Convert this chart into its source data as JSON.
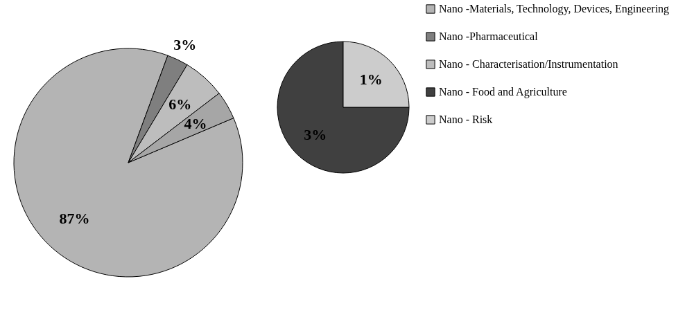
{
  "chart_data": [
    {
      "type": "pie",
      "categories": [
        "Nano -Materials, Technology, Devices, Engineering",
        "Nano -Pharmaceutical",
        "Nano - Characterisation/Instrumentation",
        null
      ],
      "values": [
        87,
        3,
        6,
        4
      ],
      "colors": [
        "#b4b4b4",
        "#7f7f7f",
        "#bdbdbd",
        "#a6a6a6"
      ],
      "data_labels": true,
      "value_labels": [
        "87%",
        "3%",
        "6%",
        "4%"
      ],
      "legend": "right"
    },
    {
      "type": "pie",
      "categories": [
        "Nano - Food and Agriculture",
        "Nano - Risk"
      ],
      "values": [
        3,
        1
      ],
      "colors": [
        "#404040",
        "#cccccc"
      ],
      "data_labels": true,
      "value_labels": [
        "3%",
        "1%"
      ],
      "legend": "right"
    }
  ]
}
